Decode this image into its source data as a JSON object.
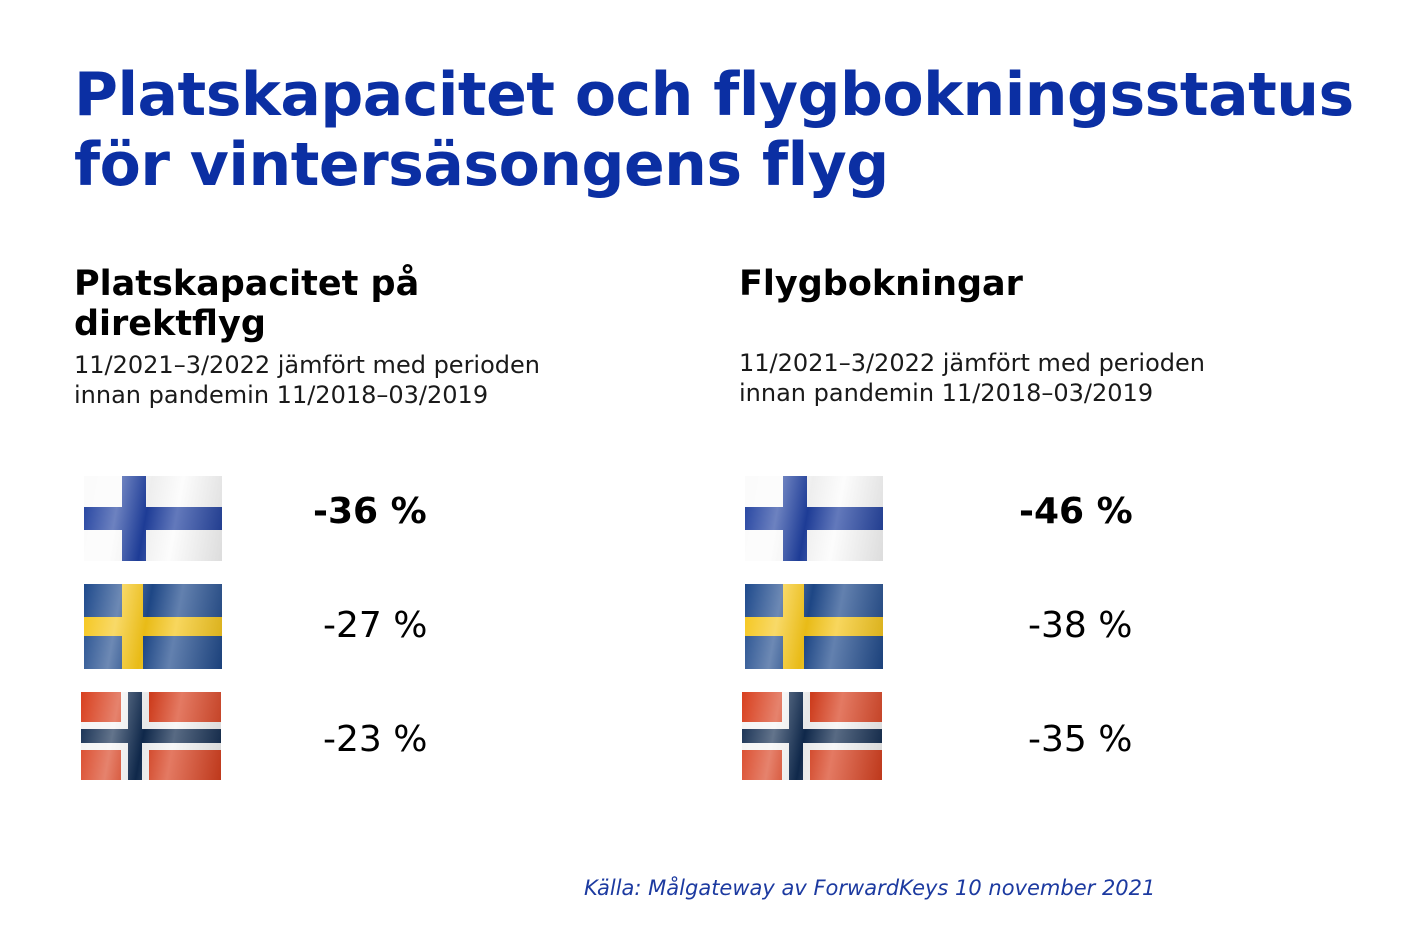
{
  "title": {
    "line1": "Platskapacitet och flygbokningsstatus",
    "line2": "för vintersäsongens flyg"
  },
  "columns": [
    {
      "heading_line1": "Platskapacitet på",
      "heading_line2": "direktflyg",
      "sub_line1": "11/2021–3/2022 jämfört med perioden",
      "sub_line2": "innan pandemin 11/2018–03/2019",
      "rows": [
        {
          "flag": "finland-flag",
          "value": "-36 %"
        },
        {
          "flag": "sweden-flag",
          "value": "-27 %"
        },
        {
          "flag": "norway-flag",
          "value": "-23 %"
        }
      ]
    },
    {
      "heading_line1": "Flygbokningar",
      "heading_line2": "",
      "sub_line1": "11/2021–3/2022 jämfört med perioden",
      "sub_line2": "innan pandemin 11/2018–03/2019",
      "rows": [
        {
          "flag": "finland-flag",
          "value": "-46 %"
        },
        {
          "flag": "sweden-flag",
          "value": "-38 %"
        },
        {
          "flag": "norway-flag",
          "value": "-35 %"
        }
      ]
    }
  ],
  "source": "Källa: Målgateway av ForwardKeys 10 november 2021",
  "colors": {
    "title": "#0b2fa3",
    "source": "#1c3aa0",
    "finland_blue": "#1f3f9e",
    "sweden_blue": "#1f4a8c",
    "sweden_yellow": "#f5c518",
    "norway_red": "#d8401f",
    "norway_blue": "#102a4e"
  }
}
